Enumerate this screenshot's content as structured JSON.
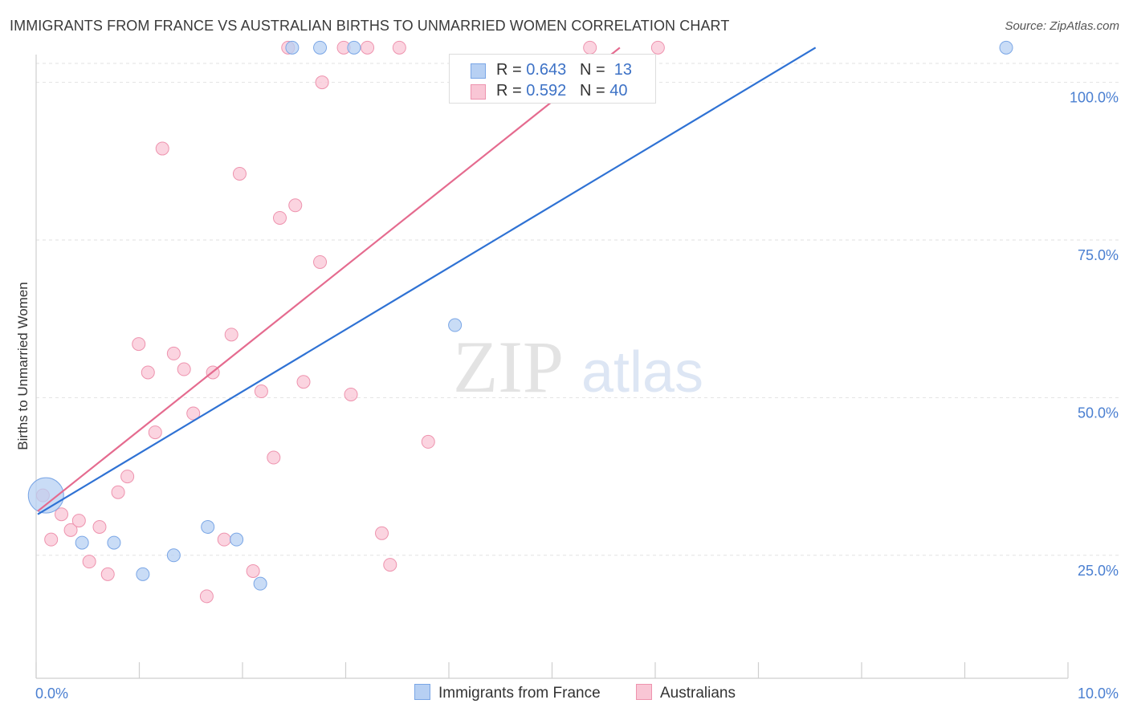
{
  "title": "IMMIGRANTS FROM FRANCE VS AUSTRALIAN BIRTHS TO UNMARRIED WOMEN CORRELATION CHART",
  "source": "Source: ZipAtlas.com",
  "watermark": {
    "zip": "ZIP",
    "atlas": "atlas"
  },
  "legend": {
    "rows": [
      {
        "r_label": "R = ",
        "r_value": "0.643",
        "n_label": "N = ",
        "n_value": "13",
        "color": "#b7d0f3",
        "border": "#7aa6e6"
      },
      {
        "r_label": "R = ",
        "r_value": "0.592",
        "n_label": "N = ",
        "n_value": "40",
        "color": "#f9c6d5",
        "border": "#ee93ae"
      }
    ]
  },
  "chart_data": {
    "type": "scatter",
    "title": "IMMIGRANTS FROM FRANCE VS AUSTRALIAN BIRTHS TO UNMARRIED WOMEN CORRELATION CHART",
    "xlabel": "",
    "ylabel": "Births to Unmarried Women",
    "xlim": [
      0,
      10
    ],
    "ylim": [
      2.5,
      100
    ],
    "x_tick_labels": [
      "0.0%",
      "10.0%"
    ],
    "y_ticks": [
      25,
      50,
      75,
      100
    ],
    "y_tick_labels": [
      "25.0%",
      "50.0%",
      "75.0%",
      "100.0%"
    ],
    "grid": true,
    "series": [
      {
        "name": "Immigrants from France",
        "color": "#b7d0f3",
        "edge": "#7aa6e6",
        "line_color": "#2f72d4",
        "R": 0.643,
        "N": 13,
        "trend": {
          "x": [
            0,
            7.55
          ],
          "y": [
            28.5,
            102.5
          ]
        },
        "points": [
          {
            "x": 0.08,
            "y": 31.5,
            "big": true
          },
          {
            "x": 0.43,
            "y": 24.0
          },
          {
            "x": 0.74,
            "y": 24.0
          },
          {
            "x": 1.02,
            "y": 19.0
          },
          {
            "x": 1.32,
            "y": 22.0
          },
          {
            "x": 1.65,
            "y": 26.5
          },
          {
            "x": 1.93,
            "y": 24.5
          },
          {
            "x": 2.16,
            "y": 17.5
          },
          {
            "x": 2.47,
            "y": 102.5
          },
          {
            "x": 2.74,
            "y": 102.5
          },
          {
            "x": 3.07,
            "y": 102.5
          },
          {
            "x": 4.05,
            "y": 58.5
          },
          {
            "x": 9.4,
            "y": 102.5
          }
        ]
      },
      {
        "name": "Australians",
        "color": "#f9c6d5",
        "edge": "#ee93ae",
        "line_color": "#e56b8f",
        "R": 0.592,
        "N": 40,
        "trend": {
          "x": [
            0,
            5.65
          ],
          "y": [
            29.0,
            102.5
          ]
        },
        "points": [
          {
            "x": 0.05,
            "y": 31.5
          },
          {
            "x": 0.13,
            "y": 24.5
          },
          {
            "x": 0.23,
            "y": 28.5
          },
          {
            "x": 0.32,
            "y": 26.0
          },
          {
            "x": 0.4,
            "y": 27.5
          },
          {
            "x": 0.5,
            "y": 21.0
          },
          {
            "x": 0.6,
            "y": 26.5
          },
          {
            "x": 0.68,
            "y": 19.0
          },
          {
            "x": 0.78,
            "y": 32.0
          },
          {
            "x": 0.87,
            "y": 34.5
          },
          {
            "x": 0.98,
            "y": 55.5
          },
          {
            "x": 1.07,
            "y": 51.0
          },
          {
            "x": 1.14,
            "y": 41.5
          },
          {
            "x": 1.21,
            "y": 86.5
          },
          {
            "x": 1.32,
            "y": 54.0
          },
          {
            "x": 1.42,
            "y": 51.5
          },
          {
            "x": 1.51,
            "y": 44.5
          },
          {
            "x": 1.64,
            "y": 15.5
          },
          {
            "x": 1.7,
            "y": 51.0
          },
          {
            "x": 1.81,
            "y": 24.5
          },
          {
            "x": 1.88,
            "y": 57.0
          },
          {
            "x": 1.96,
            "y": 82.5
          },
          {
            "x": 2.09,
            "y": 19.5
          },
          {
            "x": 2.17,
            "y": 48.0
          },
          {
            "x": 2.29,
            "y": 37.5
          },
          {
            "x": 2.35,
            "y": 75.5
          },
          {
            "x": 2.43,
            "y": 102.5
          },
          {
            "x": 2.5,
            "y": 77.5
          },
          {
            "x": 2.58,
            "y": 49.5
          },
          {
            "x": 2.74,
            "y": 68.5
          },
          {
            "x": 2.76,
            "y": 97.0
          },
          {
            "x": 2.97,
            "y": 102.5
          },
          {
            "x": 3.04,
            "y": 47.5
          },
          {
            "x": 3.2,
            "y": 102.5
          },
          {
            "x": 3.34,
            "y": 25.5
          },
          {
            "x": 3.42,
            "y": 20.5
          },
          {
            "x": 3.51,
            "y": 102.5
          },
          {
            "x": 3.79,
            "y": 40.0
          },
          {
            "x": 5.36,
            "y": 102.5
          },
          {
            "x": 6.02,
            "y": 102.5
          }
        ]
      }
    ]
  }
}
